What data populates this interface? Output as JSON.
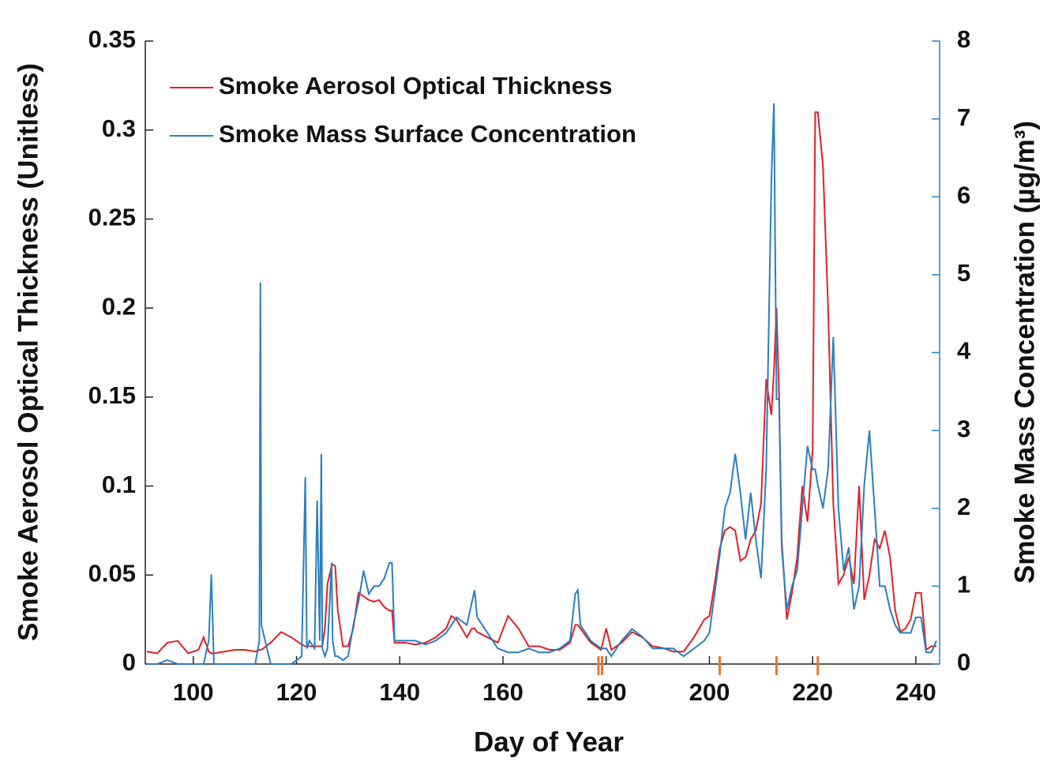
{
  "chart_data": {
    "type": "line",
    "xlabel": "Day of Year",
    "ylabel": "Smoke Aerosol Optical Thickness (Unitless)",
    "y2label": "Smoke Mass Concentration (µg/m³)",
    "xlim": [
      90.7,
      244.6
    ],
    "xticks": [
      100,
      120,
      140,
      160,
      180,
      200,
      220,
      240
    ],
    "ylim": [
      0,
      0.35
    ],
    "yticks": [
      0,
      0.05,
      0.1,
      0.15,
      0.2,
      0.25,
      0.3,
      0.35
    ],
    "y2lim": [
      0,
      8
    ],
    "y2ticks": [
      0,
      1,
      2,
      3,
      4,
      5,
      6,
      7,
      8
    ],
    "y2color": "#2a7fc0",
    "legend": "upper-left",
    "event_days": [
      178.5,
      179.2,
      202,
      213,
      221
    ],
    "event_color": "#e8772e",
    "x": [
      91,
      93,
      95,
      97,
      99,
      101,
      102,
      103,
      103.5,
      104,
      106,
      108,
      110,
      112,
      112.8,
      113,
      113.2,
      115,
      117,
      119,
      121,
      121.7,
      122,
      122.5,
      123.5,
      124,
      124.5,
      124.8,
      125,
      125.5,
      126,
      126.8,
      127,
      127.5,
      128,
      129,
      130,
      131,
      132,
      133,
      134,
      135,
      136,
      137,
      138,
      138.5,
      139,
      141,
      143,
      145,
      147,
      149,
      150,
      151,
      153,
      154,
      154.5,
      155,
      157,
      159,
      161,
      163,
      165,
      167,
      169,
      171,
      173,
      174,
      174.5,
      175,
      177,
      179,
      180,
      181,
      183,
      185,
      187,
      189,
      191,
      193,
      195,
      197,
      199,
      200,
      201,
      202,
      203,
      204,
      205,
      206,
      207,
      208,
      209,
      210,
      211,
      212,
      212.5,
      213,
      213.5,
      214,
      215,
      216,
      217,
      218,
      219,
      220,
      220.5,
      221,
      222,
      223,
      224,
      225,
      226,
      227,
      228,
      229,
      230,
      231,
      232,
      233,
      234,
      235,
      236,
      237,
      238,
      239,
      240,
      241,
      242,
      243,
      244
    ],
    "series": [
      {
        "name": "Smoke Aerosol Optical Thickness",
        "color": "#e0202a",
        "values": [
          0.007,
          0.006,
          0.012,
          0.013,
          0.006,
          0.008,
          0.015,
          0.007,
          0.006,
          0.006,
          0.007,
          0.008,
          0.008,
          0.007,
          0.008,
          0.008,
          0.008,
          0.012,
          0.018,
          0.015,
          0.011,
          0.01,
          0.01,
          0.01,
          0.01,
          0.01,
          0.01,
          0.01,
          0.01,
          0.02,
          0.045,
          0.055,
          0.056,
          0.055,
          0.03,
          0.01,
          0.01,
          0.02,
          0.04,
          0.038,
          0.036,
          0.035,
          0.036,
          0.032,
          0.03,
          0.03,
          0.012,
          0.012,
          0.011,
          0.012,
          0.015,
          0.02,
          0.027,
          0.025,
          0.015,
          0.02,
          0.02,
          0.018,
          0.015,
          0.012,
          0.027,
          0.02,
          0.01,
          0.01,
          0.008,
          0.008,
          0.012,
          0.022,
          0.022,
          0.02,
          0.012,
          0.008,
          0.02,
          0.008,
          0.012,
          0.018,
          0.015,
          0.01,
          0.009,
          0.007,
          0.007,
          0.015,
          0.025,
          0.027,
          0.045,
          0.065,
          0.075,
          0.077,
          0.075,
          0.058,
          0.06,
          0.07,
          0.075,
          0.09,
          0.16,
          0.14,
          0.165,
          0.2,
          0.15,
          0.07,
          0.025,
          0.04,
          0.06,
          0.1,
          0.08,
          0.12,
          0.31,
          0.31,
          0.28,
          0.2,
          0.09,
          0.045,
          0.05,
          0.06,
          0.045,
          0.1,
          0.036,
          0.05,
          0.07,
          0.065,
          0.075,
          0.06,
          0.03,
          0.018,
          0.02,
          0.025,
          0.04,
          0.04,
          0.008,
          0.01,
          0.01
        ]
      },
      {
        "name": "Smoke Mass Surface Concentration",
        "color": "#2a7fc0",
        "axis": "y2",
        "values": [
          0,
          0,
          0.05,
          0,
          0,
          0,
          0,
          0.3,
          1.15,
          0,
          0,
          0,
          0,
          0,
          0.3,
          4.9,
          0.5,
          0,
          0,
          0,
          0.1,
          2.4,
          0.2,
          0.3,
          0.2,
          2.1,
          0.3,
          2.7,
          0.2,
          0.1,
          0.2,
          1.3,
          0.3,
          0.1,
          0.1,
          0.05,
          0.1,
          0.5,
          0.8,
          1.2,
          0.9,
          1.0,
          1.0,
          1.1,
          1.3,
          1.3,
          0.3,
          0.3,
          0.3,
          0.25,
          0.3,
          0.4,
          0.5,
          0.6,
          0.5,
          0.8,
          0.95,
          0.6,
          0.4,
          0.2,
          0.15,
          0.15,
          0.2,
          0.15,
          0.15,
          0.2,
          0.3,
          0.9,
          0.95,
          0.5,
          0.3,
          0.2,
          0.2,
          0.1,
          0.3,
          0.45,
          0.35,
          0.2,
          0.2,
          0.2,
          0.1,
          0.2,
          0.3,
          0.4,
          0.9,
          1.4,
          2.0,
          2.2,
          2.7,
          2.2,
          1.6,
          2.2,
          1.6,
          1.1,
          2.5,
          6.2,
          7.2,
          3.4,
          3.4,
          1.5,
          0.7,
          1.0,
          1.2,
          2.0,
          2.8,
          2.5,
          2.5,
          2.3,
          2.0,
          2.5,
          4.2,
          2.0,
          1.2,
          1.5,
          0.7,
          1.0,
          2.3,
          3.0,
          2.0,
          1.0,
          1.0,
          0.7,
          0.5,
          0.4,
          0.4,
          0.4,
          0.6,
          0.6,
          0.15,
          0.15,
          0.3
        ]
      }
    ]
  }
}
